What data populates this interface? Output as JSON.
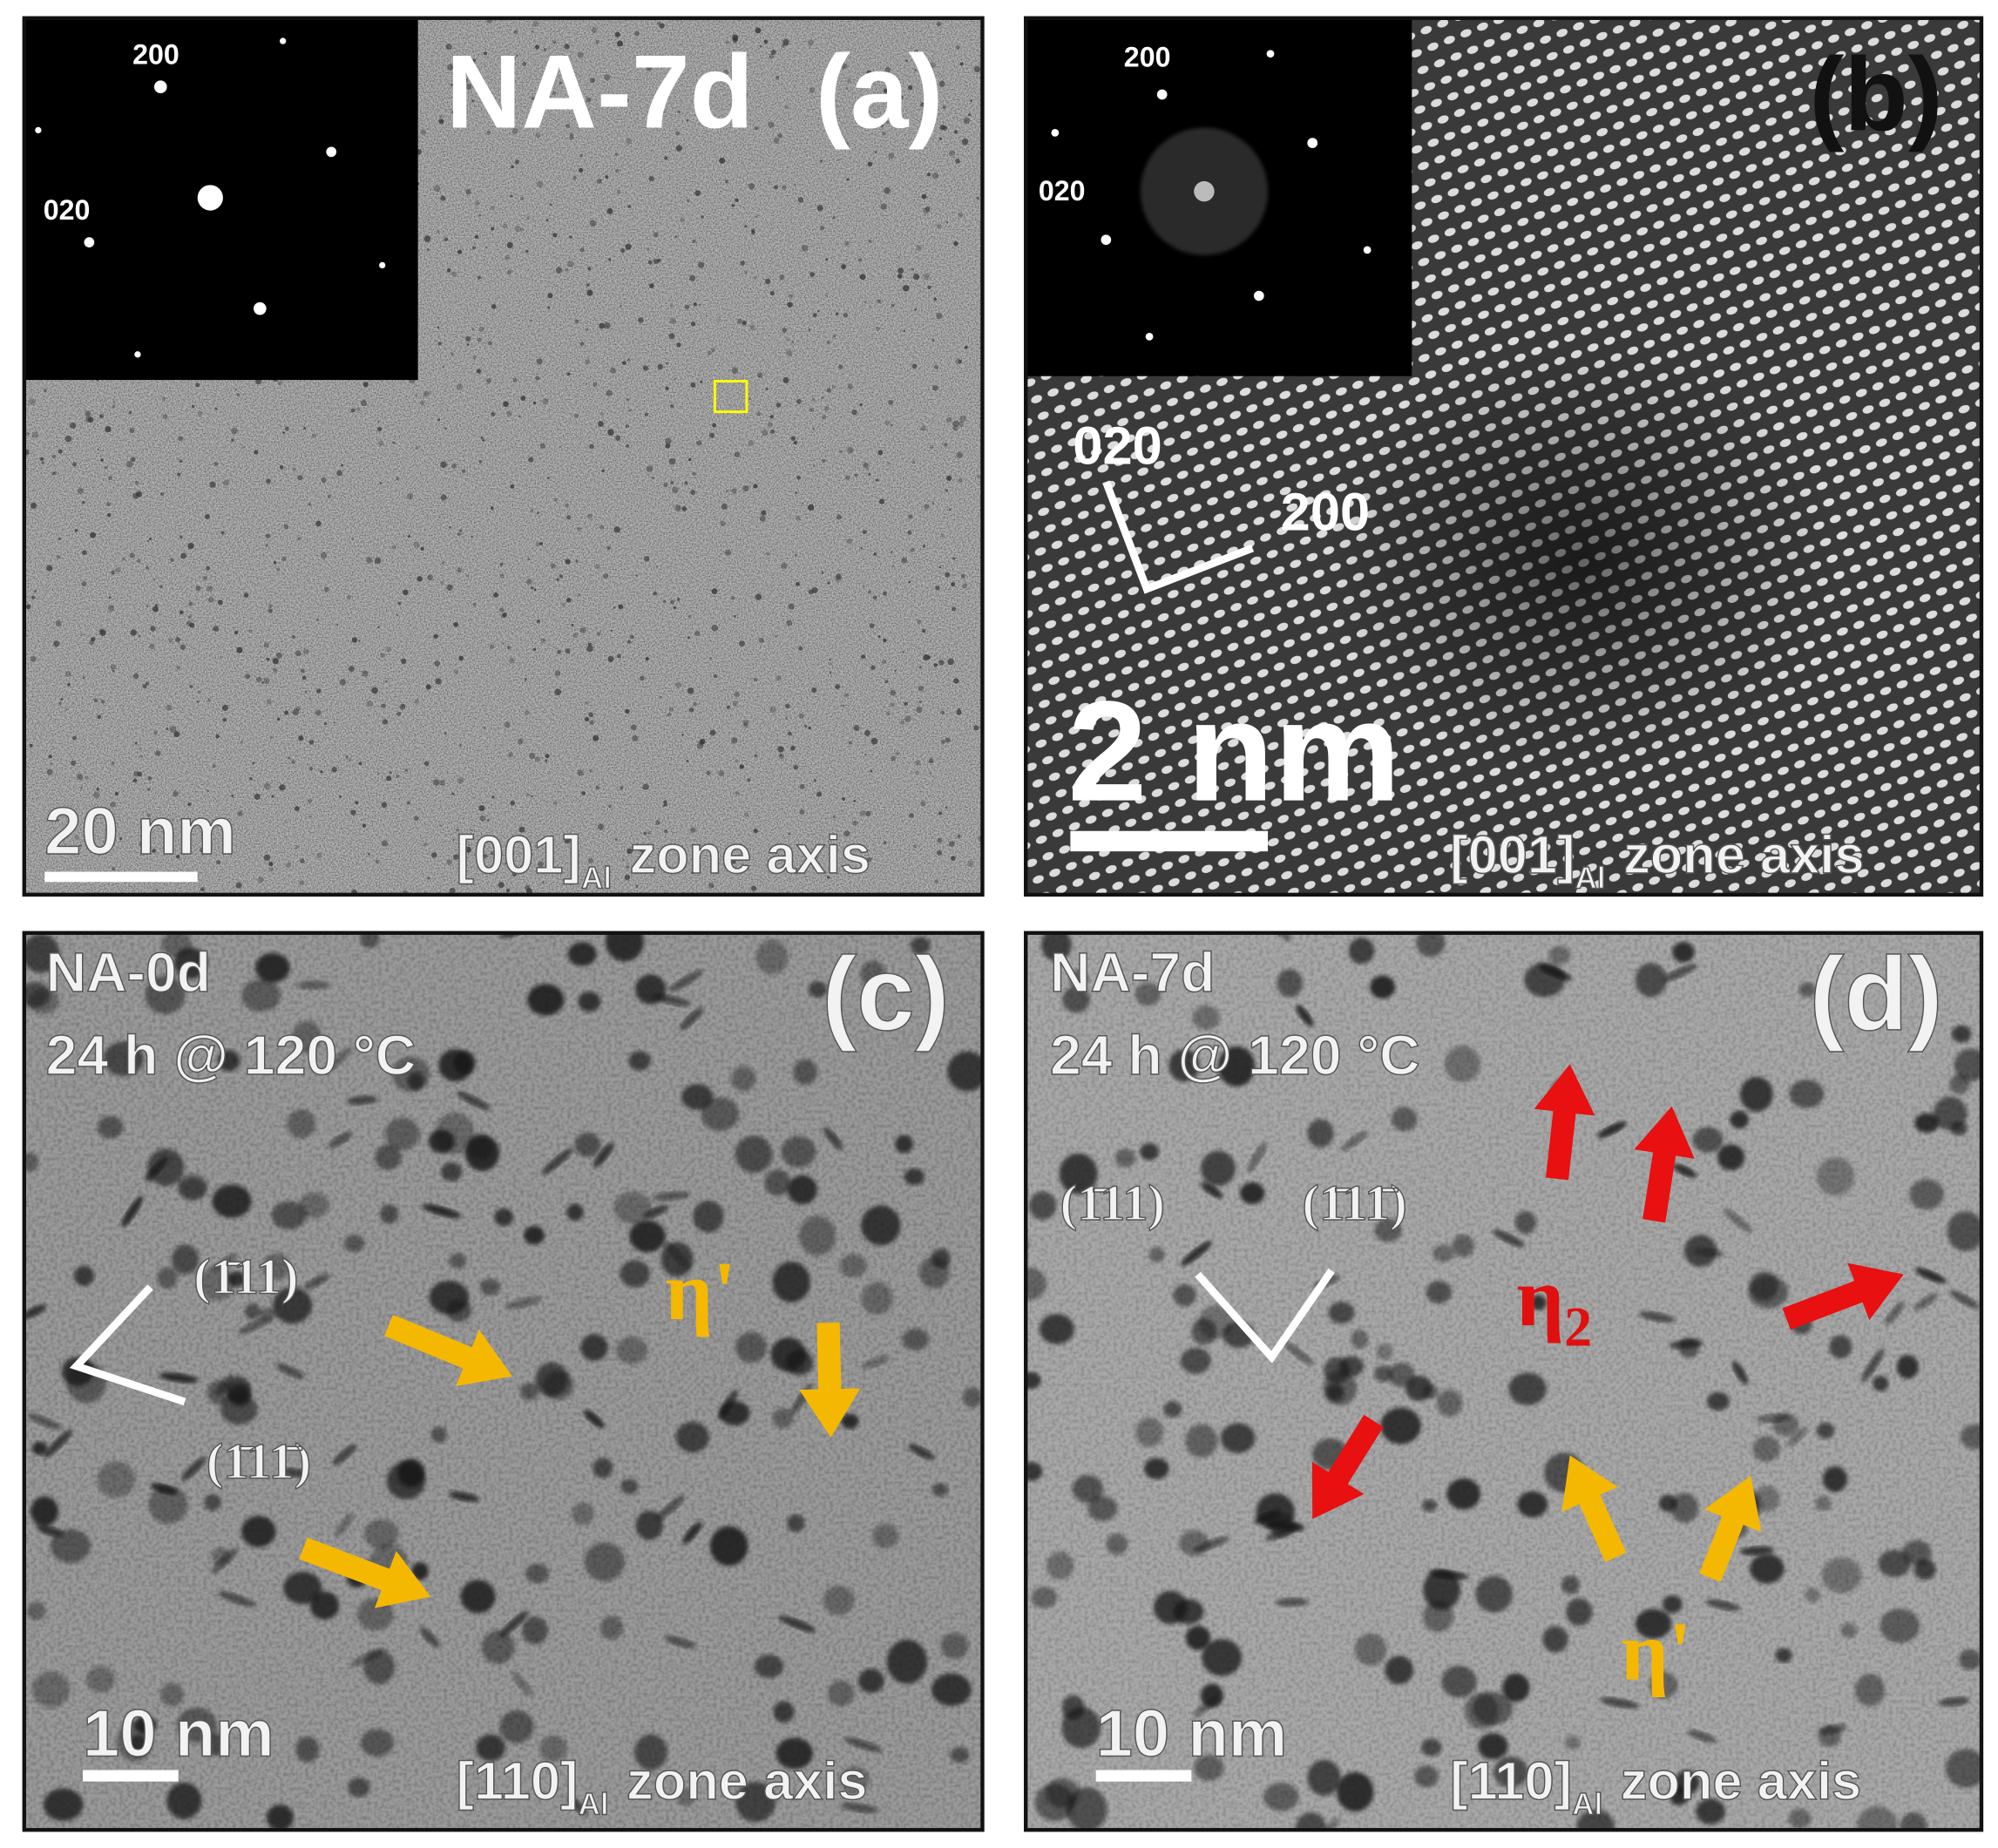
{
  "panels": [
    {
      "label": "(a)",
      "sample": "NA-7d",
      "inset_labels": [
        "200",
        "020"
      ],
      "scale_bar": "20 nm",
      "zone_axis": {
        "direction": "[001]",
        "subscript": "Al",
        "text": "zone axis"
      }
    },
    {
      "label": "(b)",
      "inset_labels": [
        "200",
        "020"
      ],
      "directions": [
        "020",
        "200"
      ],
      "scale_bar": "2 nm",
      "zone_axis": {
        "direction": "[001]",
        "subscript": "Al",
        "text": "zone axis"
      }
    },
    {
      "label": "(c)",
      "sample": "NA-0d",
      "condition": "24 h @ 120 °C",
      "planes": [
        "(1̄11)",
        "(1̄11̄)"
      ],
      "phase_labels": [
        {
          "symbol": "η'"
        }
      ],
      "scale_bar": "10 nm",
      "zone_axis": {
        "direction": "[110]",
        "subscript": "Al",
        "text": "zone axis"
      }
    },
    {
      "label": "(d)",
      "sample": "NA-7d",
      "condition": "24 h @ 120 °C",
      "planes": [
        "(1̄11)",
        "(1̄11̄)"
      ],
      "phase_labels": [
        {
          "symbol": "η",
          "subscript": "2"
        },
        {
          "symbol": "η'"
        }
      ],
      "scale_bar": "10 nm",
      "zone_axis": {
        "direction": "[110]",
        "subscript": "Al",
        "text": "zone axis"
      }
    }
  ]
}
